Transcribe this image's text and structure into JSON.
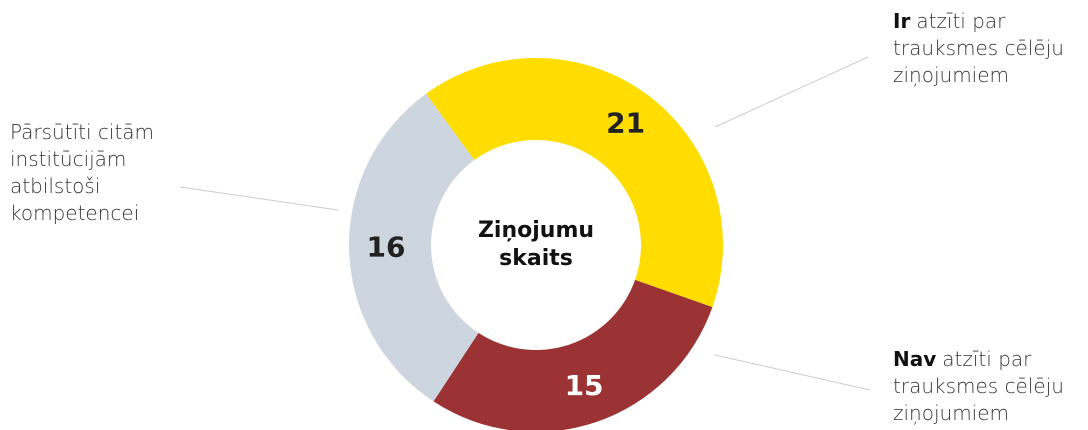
{
  "chart_data": {
    "type": "pie",
    "title": [
      "Ziņojumu",
      "skaits"
    ],
    "categories": [
      {
        "bold": "Ir",
        "lines": [
          "atzīti par",
          "trauksmes cēlēju",
          "ziņojumiem"
        ]
      },
      {
        "bold": "Nav",
        "lines": [
          "atzīti par",
          "trauksmes cēlēju",
          "ziņojumiem"
        ]
      },
      {
        "lines": [
          "Pārsūtīti citām",
          "institūcijām",
          "atbilstoši",
          "kompetencei"
        ]
      }
    ],
    "values": [
      21,
      15,
      16
    ],
    "colors": [
      "#FFDD00",
      "#9B3233",
      "#CDD6DE"
    ],
    "donut": true
  }
}
